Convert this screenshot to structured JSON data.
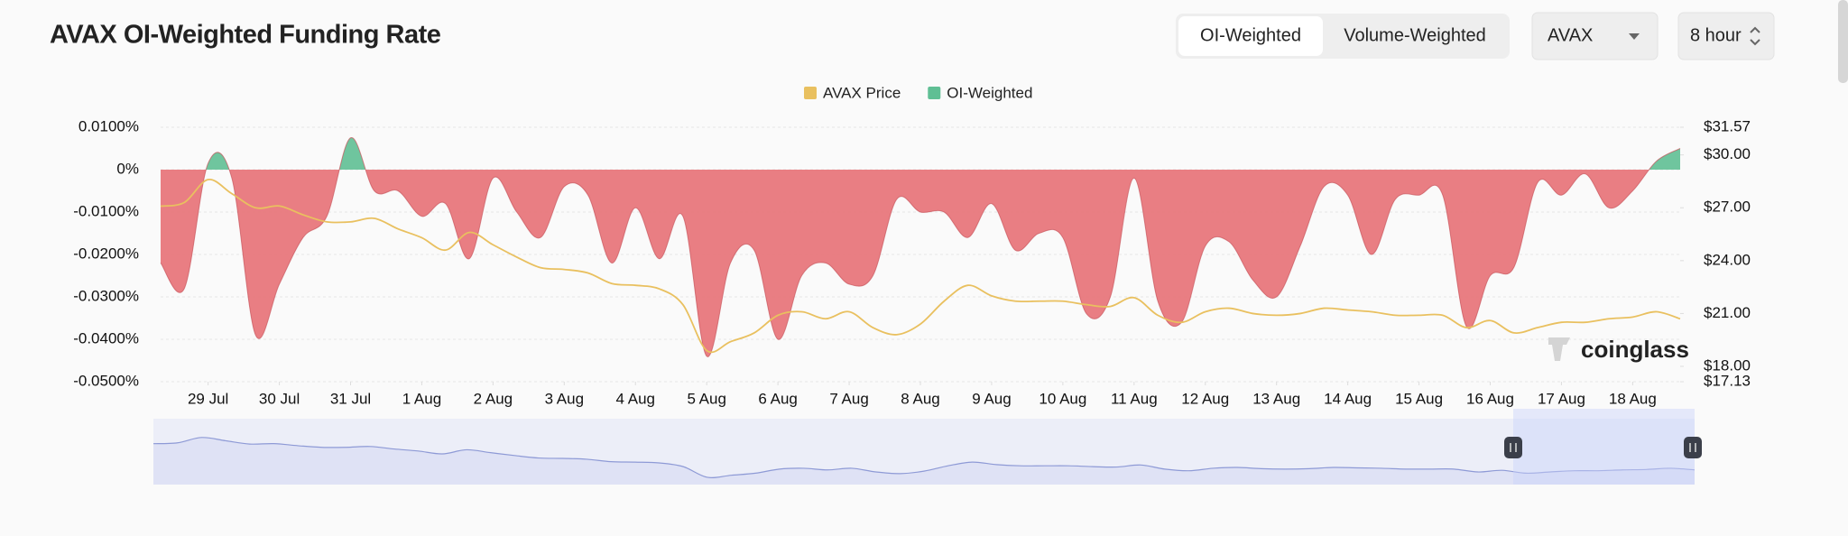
{
  "chart_data": {
    "type": "area",
    "title": "AVAX OI-Weighted Funding Rate",
    "series": [
      {
        "name": "AVAX Price",
        "color": "#e9c05f",
        "axis": "y2",
        "values": [
          27.09,
          27.3,
          28.6,
          27.8,
          27.0,
          27.1,
          26.6,
          26.2,
          26.2,
          26.4,
          25.8,
          25.3,
          24.6,
          25.6,
          24.9,
          24.2,
          23.6,
          23.5,
          23.3,
          22.7,
          22.6,
          22.4,
          21.5,
          18.9,
          19.4,
          19.9,
          20.9,
          21.1,
          20.7,
          21.1,
          20.2,
          19.8,
          20.4,
          21.7,
          22.6,
          22.0,
          21.7,
          21.7,
          21.7,
          21.5,
          21.4,
          21.9,
          20.9,
          20.5,
          21.1,
          21.3,
          21.0,
          20.9,
          21.0,
          21.3,
          21.2,
          21.1,
          20.9,
          20.9,
          20.9,
          20.2,
          20.6,
          19.9,
          20.2,
          20.5,
          20.5,
          20.7,
          20.8,
          21.1,
          20.7
        ]
      },
      {
        "name": "OI-Weighted",
        "color": "#5fbf94",
        "negative_color": "#e8777c",
        "values": [
          -0.022,
          -0.028,
          0.0015,
          -0.002,
          -0.039,
          -0.027,
          -0.016,
          -0.011,
          0.0075,
          -0.005,
          -0.005,
          -0.011,
          -0.008,
          -0.021,
          -0.002,
          -0.01,
          -0.016,
          -0.004,
          -0.006,
          -0.022,
          -0.009,
          -0.021,
          -0.011,
          -0.044,
          -0.022,
          -0.019,
          -0.04,
          -0.025,
          -0.022,
          -0.027,
          -0.025,
          -0.007,
          -0.01,
          -0.01,
          -0.016,
          -0.008,
          -0.019,
          -0.015,
          -0.016,
          -0.034,
          -0.03,
          -0.002,
          -0.031,
          -0.036,
          -0.018,
          -0.017,
          -0.026,
          -0.03,
          -0.018,
          -0.004,
          -0.006,
          -0.02,
          -0.007,
          -0.006,
          -0.006,
          -0.037,
          -0.025,
          -0.023,
          -0.003,
          -0.006,
          -0.001,
          -0.009,
          -0.005,
          0.002,
          0.005
        ]
      }
    ],
    "xlim": [
      0,
      64
    ],
    "xticks": [
      {
        "value": 2,
        "label": "29 Jul"
      },
      {
        "value": 5,
        "label": "30 Jul"
      },
      {
        "value": 8,
        "label": "31 Jul"
      },
      {
        "value": 11,
        "label": "1 Aug"
      },
      {
        "value": 14,
        "label": "2 Aug"
      },
      {
        "value": 17,
        "label": "3 Aug"
      },
      {
        "value": 20,
        "label": "4 Aug"
      },
      {
        "value": 23,
        "label": "5 Aug"
      },
      {
        "value": 26,
        "label": "6 Aug"
      },
      {
        "value": 29,
        "label": "7 Aug"
      },
      {
        "value": 32,
        "label": "8 Aug"
      },
      {
        "value": 35,
        "label": "9 Aug"
      },
      {
        "value": 38,
        "label": "10 Aug"
      },
      {
        "value": 41,
        "label": "11 Aug"
      },
      {
        "value": 44,
        "label": "12 Aug"
      },
      {
        "value": 47,
        "label": "13 Aug"
      },
      {
        "value": 50,
        "label": "14 Aug"
      },
      {
        "value": 53,
        "label": "15 Aug"
      },
      {
        "value": 56,
        "label": "16 Aug"
      },
      {
        "value": 59,
        "label": "17 Aug"
      },
      {
        "value": 62,
        "label": "18 Aug"
      }
    ],
    "ylim": [
      -0.05,
      0.01
    ],
    "yticks": [
      {
        "value": 0.01,
        "label": "0.0100%"
      },
      {
        "value": 0,
        "label": "0%"
      },
      {
        "value": -0.01,
        "label": "-0.0100%"
      },
      {
        "value": -0.02,
        "label": "-0.0200%"
      },
      {
        "value": -0.03,
        "label": "-0.0300%"
      },
      {
        "value": -0.04,
        "label": "-0.0400%"
      },
      {
        "value": -0.05,
        "label": "-0.0500%"
      }
    ],
    "y2lim": [
      17.13,
      31.57
    ],
    "y2ticks": [
      {
        "value": 31.57,
        "label": "$31.57"
      },
      {
        "value": 30,
        "label": "$30.00"
      },
      {
        "value": 27,
        "label": "$27.00"
      },
      {
        "value": 24,
        "label": "$24.00"
      },
      {
        "value": 21,
        "label": "$21.00"
      },
      {
        "value": 18,
        "label": "$18.00"
      },
      {
        "value": 17.13,
        "label": "$17.13"
      }
    ],
    "grid": true,
    "legend": "top"
  },
  "controls": {
    "modes": [
      "OI-Weighted",
      "Volume-Weighted"
    ],
    "symbol": "AVAX",
    "interval": "8 hour"
  },
  "watermark": "coinglass"
}
